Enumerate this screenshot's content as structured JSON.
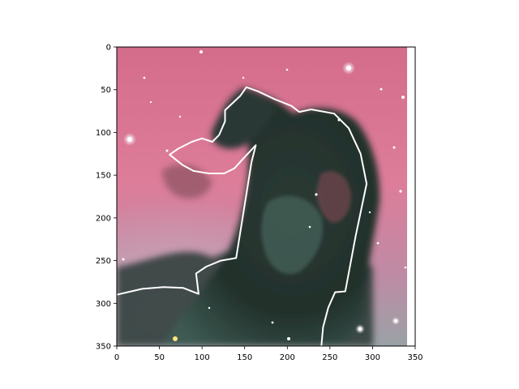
{
  "figure": {
    "x_ticks": [
      "0",
      "50",
      "100",
      "150",
      "200",
      "250",
      "300",
      "350"
    ],
    "y_ticks": [
      "0",
      "50",
      "100",
      "150",
      "200",
      "250",
      "300",
      "350"
    ],
    "x_range": [
      0,
      350
    ],
    "y_range": [
      350,
      0
    ],
    "y_axis_inverted": true
  },
  "image": {
    "subject": "horse-head-nebula",
    "colors": {
      "sky_pink": "#d9708f",
      "sky_light": "#e7a3bb",
      "nebula_dark": "#1e2b27",
      "nebula_teal": "#3d5a52",
      "haze_lilac": "#b8a3b6",
      "star": "#ffffff"
    }
  },
  "overlay": {
    "stroke_color": "#ffffff",
    "outline_points": [
      [
        0,
        290
      ],
      [
        30,
        283
      ],
      [
        55,
        281
      ],
      [
        78,
        282
      ],
      [
        96,
        289
      ],
      [
        93,
        265
      ],
      [
        105,
        257
      ],
      [
        122,
        250
      ],
      [
        140,
        247
      ],
      [
        158,
        135
      ],
      [
        163,
        115
      ],
      [
        148,
        131
      ],
      [
        138,
        142
      ],
      [
        126,
        148
      ],
      [
        108,
        148
      ],
      [
        90,
        145
      ],
      [
        77,
        138
      ],
      [
        62,
        126
      ],
      [
        72,
        119
      ],
      [
        88,
        111
      ],
      [
        100,
        107
      ],
      [
        112,
        111
      ],
      [
        120,
        103
      ],
      [
        127,
        87
      ],
      [
        127,
        74
      ],
      [
        145,
        57
      ],
      [
        152,
        47
      ],
      [
        166,
        52
      ],
      [
        185,
        61
      ],
      [
        205,
        69
      ],
      [
        214,
        76
      ],
      [
        228,
        73
      ],
      [
        255,
        78
      ],
      [
        272,
        95
      ],
      [
        286,
        125
      ],
      [
        293,
        160
      ],
      [
        280,
        222
      ],
      [
        268,
        286
      ],
      [
        256,
        287
      ],
      [
        248,
        305
      ],
      [
        242,
        328
      ],
      [
        240,
        350
      ]
    ]
  }
}
